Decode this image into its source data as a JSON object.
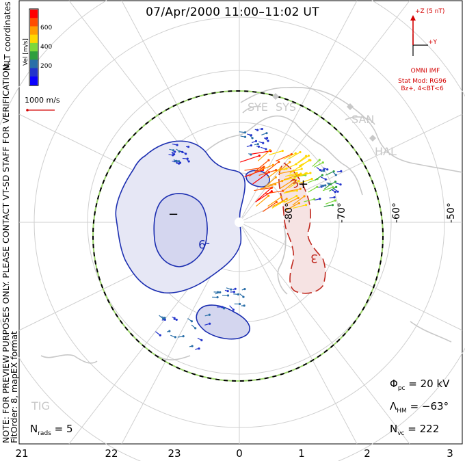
{
  "title": "07/Apr/2000 11:00–11:02 UT",
  "imf": {
    "z_label": "+Z (5 nT)",
    "y_label": "+Y",
    "source": "OMNI IMF",
    "model_line1": "Stat Mod: RG96",
    "model_line2": "Bz+, 4<BT<6"
  },
  "side_text": {
    "note_line1": "NOTE: FOR PREVIEW PURPOSES ONLY. PLEASE CONTACT VT-SD STAFF FOR VERIFICATION.",
    "note_line2": "FitOrder: 8, mapEX format",
    "coords": "MLT coordinates"
  },
  "legend": {
    "title": "Vel [m/s]",
    "labels": [
      "600",
      "400",
      "200"
    ],
    "colors": [
      "#ff0000",
      "#ff4d00",
      "#ff9d00",
      "#ffd800",
      "#7dd83a",
      "#2e9e3e",
      "#2a6fa8",
      "#2233cc",
      "#0a00ff"
    ],
    "reference": "1000 m/s"
  },
  "stations": [
    "SYE",
    "SYS",
    "SAN",
    "HAL",
    "TIG"
  ],
  "latitudes": [
    "-80°",
    "-70°",
    "-60°",
    "-50°"
  ],
  "mlt_ticks": [
    "21",
    "22",
    "23",
    "0",
    "1",
    "2",
    "3"
  ],
  "contours": {
    "negative_label": "−",
    "negative_value": "-9",
    "positive_label": "+",
    "positive_value": "3",
    "cell_label": "3"
  },
  "stats": {
    "phi_symbol": "Φ",
    "phi_sub": "pc",
    "phi_value": "= 20 kV",
    "lambda_symbol": "Λ",
    "lambda_sub": "HM",
    "lambda_value": "= −63°",
    "nvc_symbol": "N",
    "nvc_sub": "vc",
    "nvc_value": "= 222",
    "nrads_symbol": "N",
    "nrads_sub": "rads",
    "nrads_value": "= 5"
  },
  "colors": {
    "negative_contour": "#1a2db0",
    "negative_fill": "#e6e7f5",
    "negative_core": "#d4d6ef",
    "positive_contour": "#c0281e",
    "positive_fill": "#f6e3e3",
    "grid": "#cfcfcf",
    "coast": "#c8c8c8",
    "hmb_dash_a": "#000000",
    "hmb_dash_b": "#9bd46a"
  }
}
